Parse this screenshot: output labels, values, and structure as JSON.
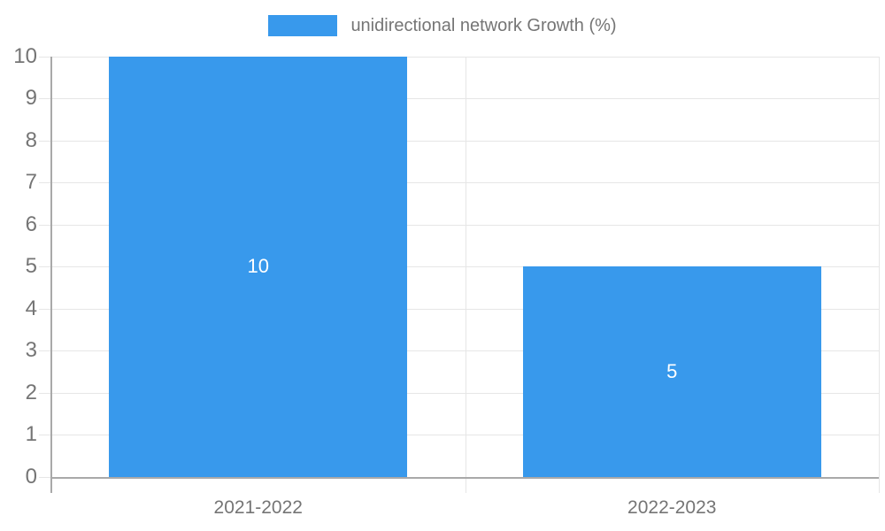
{
  "chart_data": {
    "type": "bar",
    "title": "",
    "legend": "unidirectional network Growth (%)",
    "legend_position": "top-center",
    "categories": [
      "2021-2022",
      "2022-2023"
    ],
    "values": [
      10,
      5
    ],
    "bar_value_labels": [
      "10",
      "5"
    ],
    "y_ticks": [
      "0",
      "1",
      "2",
      "3",
      "4",
      "5",
      "6",
      "7",
      "8",
      "9",
      "10"
    ],
    "ylim": [
      0,
      10
    ],
    "xlabel": "",
    "ylabel": "",
    "grid": true,
    "colors": {
      "bar": "#3899ec",
      "gridline": "#e6e6e6",
      "axis": "#a9a9a9",
      "tick_text": "#757575",
      "value_label": "#ffffff",
      "background": "#ffffff"
    }
  }
}
